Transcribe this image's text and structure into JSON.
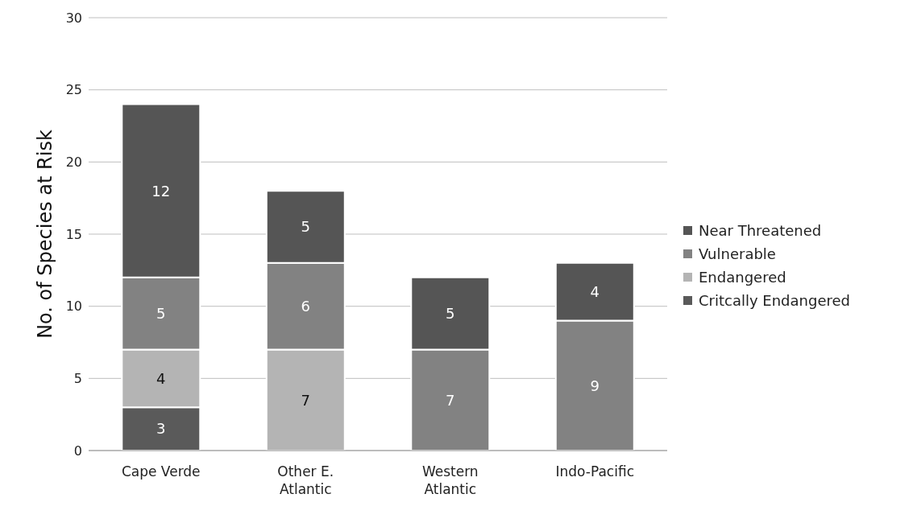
{
  "chart_data": {
    "type": "bar",
    "stacked": true,
    "ylabel": "No. of Species at Risk",
    "categories": [
      "Cape Verde",
      "Other E. Atlantic",
      "Western Atlantic",
      "Indo-Pacific"
    ],
    "series": [
      {
        "name": "Critcally Endangered",
        "color": "#5a5a5a",
        "values": [
          3,
          null,
          null,
          null
        ]
      },
      {
        "name": "Endangered",
        "color": "#b4b4b4",
        "values": [
          4,
          7,
          null,
          null
        ]
      },
      {
        "name": "Vulnerable",
        "color": "#828282",
        "values": [
          5,
          6,
          7,
          9
        ]
      },
      {
        "name": "Near Threatened",
        "color": "#555555",
        "values": [
          12,
          5,
          5,
          4
        ]
      }
    ],
    "ylim": [
      0,
      30
    ],
    "yticks": [
      0,
      5,
      10,
      15,
      20,
      25,
      30
    ],
    "grid": "y",
    "legend": "right",
    "data_labels": true
  }
}
